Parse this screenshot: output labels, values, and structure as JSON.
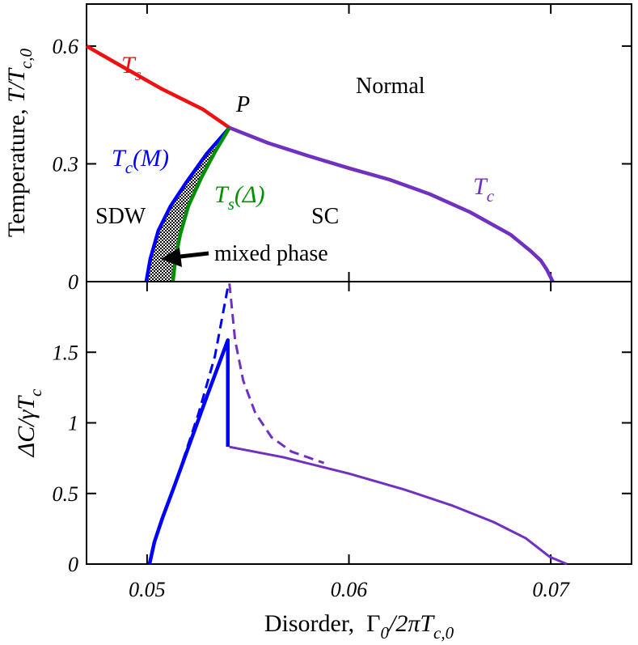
{
  "chart_data": [
    {
      "type": "line",
      "ylabel": [
        "Temperature, ",
        "T/T",
        "c,0"
      ],
      "xlim": [
        0.047,
        0.074
      ],
      "ylim": [
        0,
        0.707
      ],
      "yticks": [
        0,
        0.3,
        0.6
      ],
      "annotations": [
        "Normal",
        "P",
        "SC",
        "SDW",
        "mixed phase"
      ],
      "series": [
        {
          "name": [
            "T",
            "s"
          ],
          "color": "#ee1111",
          "x": [
            0.047,
            0.04876,
            0.05076,
            0.05276,
            0.05408
          ],
          "values": [
            0.6,
            0.548,
            0.49,
            0.439,
            0.392
          ]
        },
        {
          "name": [
            "T",
            "c",
            "(M)"
          ],
          "color": "#0000ff",
          "x": [
            0.04996,
            0.05016,
            0.05056,
            0.05116,
            0.05196,
            0.05296,
            0.05408
          ],
          "values": [
            0,
            0.058,
            0.13,
            0.192,
            0.254,
            0.326,
            0.392
          ]
        },
        {
          "name": [
            "T",
            "s",
            "(Δ)"
          ],
          "color": "#009000",
          "x": [
            0.05128,
            0.0514,
            0.05164,
            0.05204,
            0.05268,
            0.05336,
            0.05408
          ],
          "values": [
            0,
            0.058,
            0.12,
            0.192,
            0.264,
            0.33,
            0.392
          ]
        },
        {
          "name": [
            "T",
            "c"
          ],
          "color": "#7030c0",
          "x": [
            0.05408,
            0.056,
            0.058,
            0.06,
            0.062,
            0.064,
            0.066,
            0.068,
            0.069,
            0.0695,
            0.0698,
            0.0701
          ],
          "values": [
            0.392,
            0.353,
            0.32,
            0.289,
            0.26,
            0.223,
            0.177,
            0.12,
            0.078,
            0.054,
            0.031,
            0
          ]
        }
      ]
    },
    {
      "type": "line",
      "ylabel": [
        "ΔC/γT",
        "c"
      ],
      "xlabel": [
        "Disorder,  ",
        "Γ",
        "0",
        "/2πT",
        "c,0"
      ],
      "xlim": [
        0.047,
        0.074
      ],
      "xticks": [
        0.05,
        0.06,
        0.07
      ],
      "ylim": [
        0,
        2
      ],
      "yticks": [
        0,
        0.5,
        1,
        1.5
      ],
      "series": [
        {
          "color": "#0000ff",
          "style": "solid",
          "x": [
            0.05012,
            0.05036,
            0.05076,
            0.05136,
            0.05216,
            0.05296,
            0.054,
            0.054
          ],
          "values": [
            0,
            0.155,
            0.326,
            0.556,
            0.871,
            1.186,
            1.586,
            0.83
          ]
        },
        {
          "color": "#0000ff",
          "style": "dashed",
          "x": [
            0.05176,
            0.05256,
            0.05336,
            0.054
          ],
          "values": [
            0.727,
            1.071,
            1.472,
            1.959
          ]
        },
        {
          "color": "#7030c0",
          "style": "dashed",
          "x": [
            0.05408,
            0.05436,
            0.05476,
            0.05536,
            0.05616,
            0.05716,
            0.05876
          ],
          "values": [
            1.987,
            1.586,
            1.3,
            1.071,
            0.899,
            0.796,
            0.716
          ]
        },
        {
          "color": "#7030c0",
          "style": "solid",
          "x": [
            0.05408,
            0.05676,
            0.06,
            0.06276,
            0.06516,
            0.06716,
            0.06876,
            0.06996,
            0.0708
          ],
          "values": [
            0.83,
            0.756,
            0.641,
            0.527,
            0.412,
            0.298,
            0.183,
            0.05,
            0
          ]
        }
      ]
    }
  ]
}
